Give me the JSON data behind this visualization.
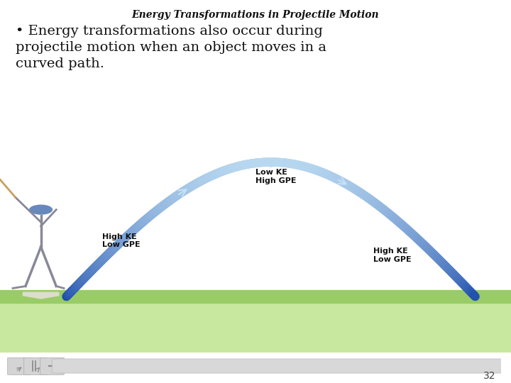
{
  "title": "Energy Transformations in Projectile Motion",
  "title_fontsize": 10,
  "bullet_text": "Energy transformations also occur during\nprojectile motion when an object moves in a\ncurved path.",
  "bullet_fontsize": 14,
  "label_left": "High KE\nLow GPE",
  "label_top": "Low KE\nHigh GPE",
  "label_right": "High KE\nLow GPE",
  "label_fontsize": 8,
  "arc_color_dark": "#1a4aaa",
  "arc_color_light": "#b8d8f0",
  "grass_color": "#99cc66",
  "grass_light": "#c8e8a0",
  "background_color": "#ffffff",
  "page_number": "32",
  "arc_linewidth": 9
}
